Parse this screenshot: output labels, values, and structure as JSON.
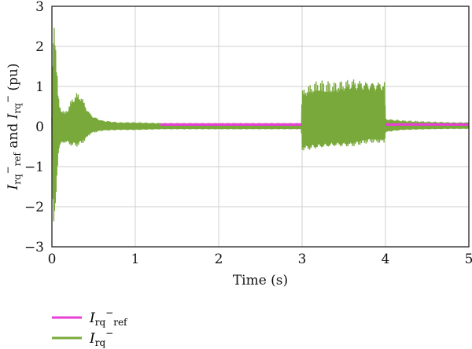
{
  "chart_data": {
    "type": "line",
    "xlabel": "Time (s)",
    "ylabel": "I_rq^-_ref and I_rq^- (pu)",
    "ylabel_parts": {
      "i1": "I",
      "sub1": "rq",
      "sup1": "−",
      "sub1b": "ref",
      "and": " and ",
      "i2": "I",
      "sub2": "rq",
      "sup2": "−",
      "unit": " (pu)"
    },
    "xlim": [
      0,
      5
    ],
    "ylim": [
      -3,
      3
    ],
    "xticks": [
      0,
      1,
      2,
      3,
      4,
      5
    ],
    "yticks": [
      -3,
      -2,
      -1,
      0,
      1,
      2,
      3
    ],
    "grid": true,
    "legend_placement": "bottom-left",
    "series": [
      {
        "name": "I_rq^-_ref",
        "label_parts": {
          "i": "I",
          "sub": "rq",
          "sup": "−",
          "subb": "ref"
        },
        "color": "#E83FD8",
        "segments": [
          {
            "x": [
              1.3,
              3.0
            ],
            "y": [
              0.05,
              0.05
            ]
          },
          {
            "x": [
              4.0,
              5.0
            ],
            "y": [
              0.05,
              0.05
            ]
          }
        ]
      },
      {
        "name": "I_rq^-",
        "label_parts": {
          "i": "I",
          "sub": "rq",
          "sup": "−"
        },
        "color": "#79A93B",
        "envelope": {
          "x": [
            0.0,
            0.02,
            0.04,
            0.06,
            0.08,
            0.1,
            0.15,
            0.2,
            0.25,
            0.3,
            0.35,
            0.4,
            0.45,
            0.5,
            0.6,
            0.8,
            1.0,
            1.3,
            1.6,
            2.0,
            2.5,
            2.99,
            3.0,
            3.05,
            3.2,
            3.4,
            3.6,
            3.8,
            3.99,
            4.0,
            4.05,
            4.2,
            4.5,
            4.8,
            5.0
          ],
          "upper": [
            0.3,
            3.0,
            2.6,
            1.4,
            0.7,
            0.5,
            0.35,
            0.5,
            0.75,
            0.85,
            0.8,
            0.55,
            0.35,
            0.25,
            0.15,
            0.1,
            0.1,
            0.08,
            0.08,
            0.08,
            0.08,
            0.08,
            0.9,
            1.0,
            1.15,
            1.1,
            1.2,
            1.15,
            1.15,
            0.2,
            0.18,
            0.15,
            0.12,
            0.1,
            0.1
          ],
          "lower": [
            -0.3,
            -2.8,
            -2.5,
            -1.3,
            -0.6,
            -0.5,
            -0.4,
            -0.45,
            -0.5,
            -0.5,
            -0.45,
            -0.35,
            -0.2,
            -0.15,
            -0.1,
            -0.08,
            -0.08,
            -0.06,
            -0.06,
            -0.06,
            -0.06,
            -0.06,
            -0.6,
            -0.6,
            -0.55,
            -0.5,
            -0.5,
            -0.4,
            -0.4,
            -0.15,
            -0.12,
            -0.08,
            -0.06,
            -0.05,
            -0.05
          ]
        }
      }
    ]
  }
}
